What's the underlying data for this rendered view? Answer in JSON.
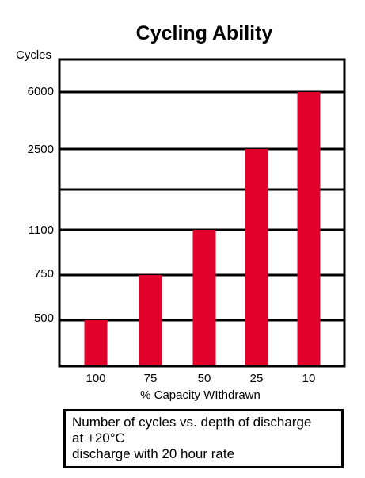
{
  "chart_data": {
    "type": "bar",
    "title": "Cycling Ability",
    "ylabel": "Cycles",
    "xlabel": "% Capacity WIthdrawn",
    "categories": [
      "100",
      "75",
      "50",
      "25",
      "10"
    ],
    "values": [
      500,
      750,
      1100,
      2500,
      6000
    ],
    "y_tick_labels": [
      "500",
      "750",
      "1100",
      "",
      "2500",
      "6000"
    ],
    "y_scale": "non-linear (labeled levels)",
    "bar_color": "#e0002a",
    "grid": true,
    "legend": "none"
  },
  "caption": {
    "lines": [
      "Number of cycles vs. depth of discharge",
      "at +20°C",
      "discharge with 20 hour rate"
    ]
  }
}
